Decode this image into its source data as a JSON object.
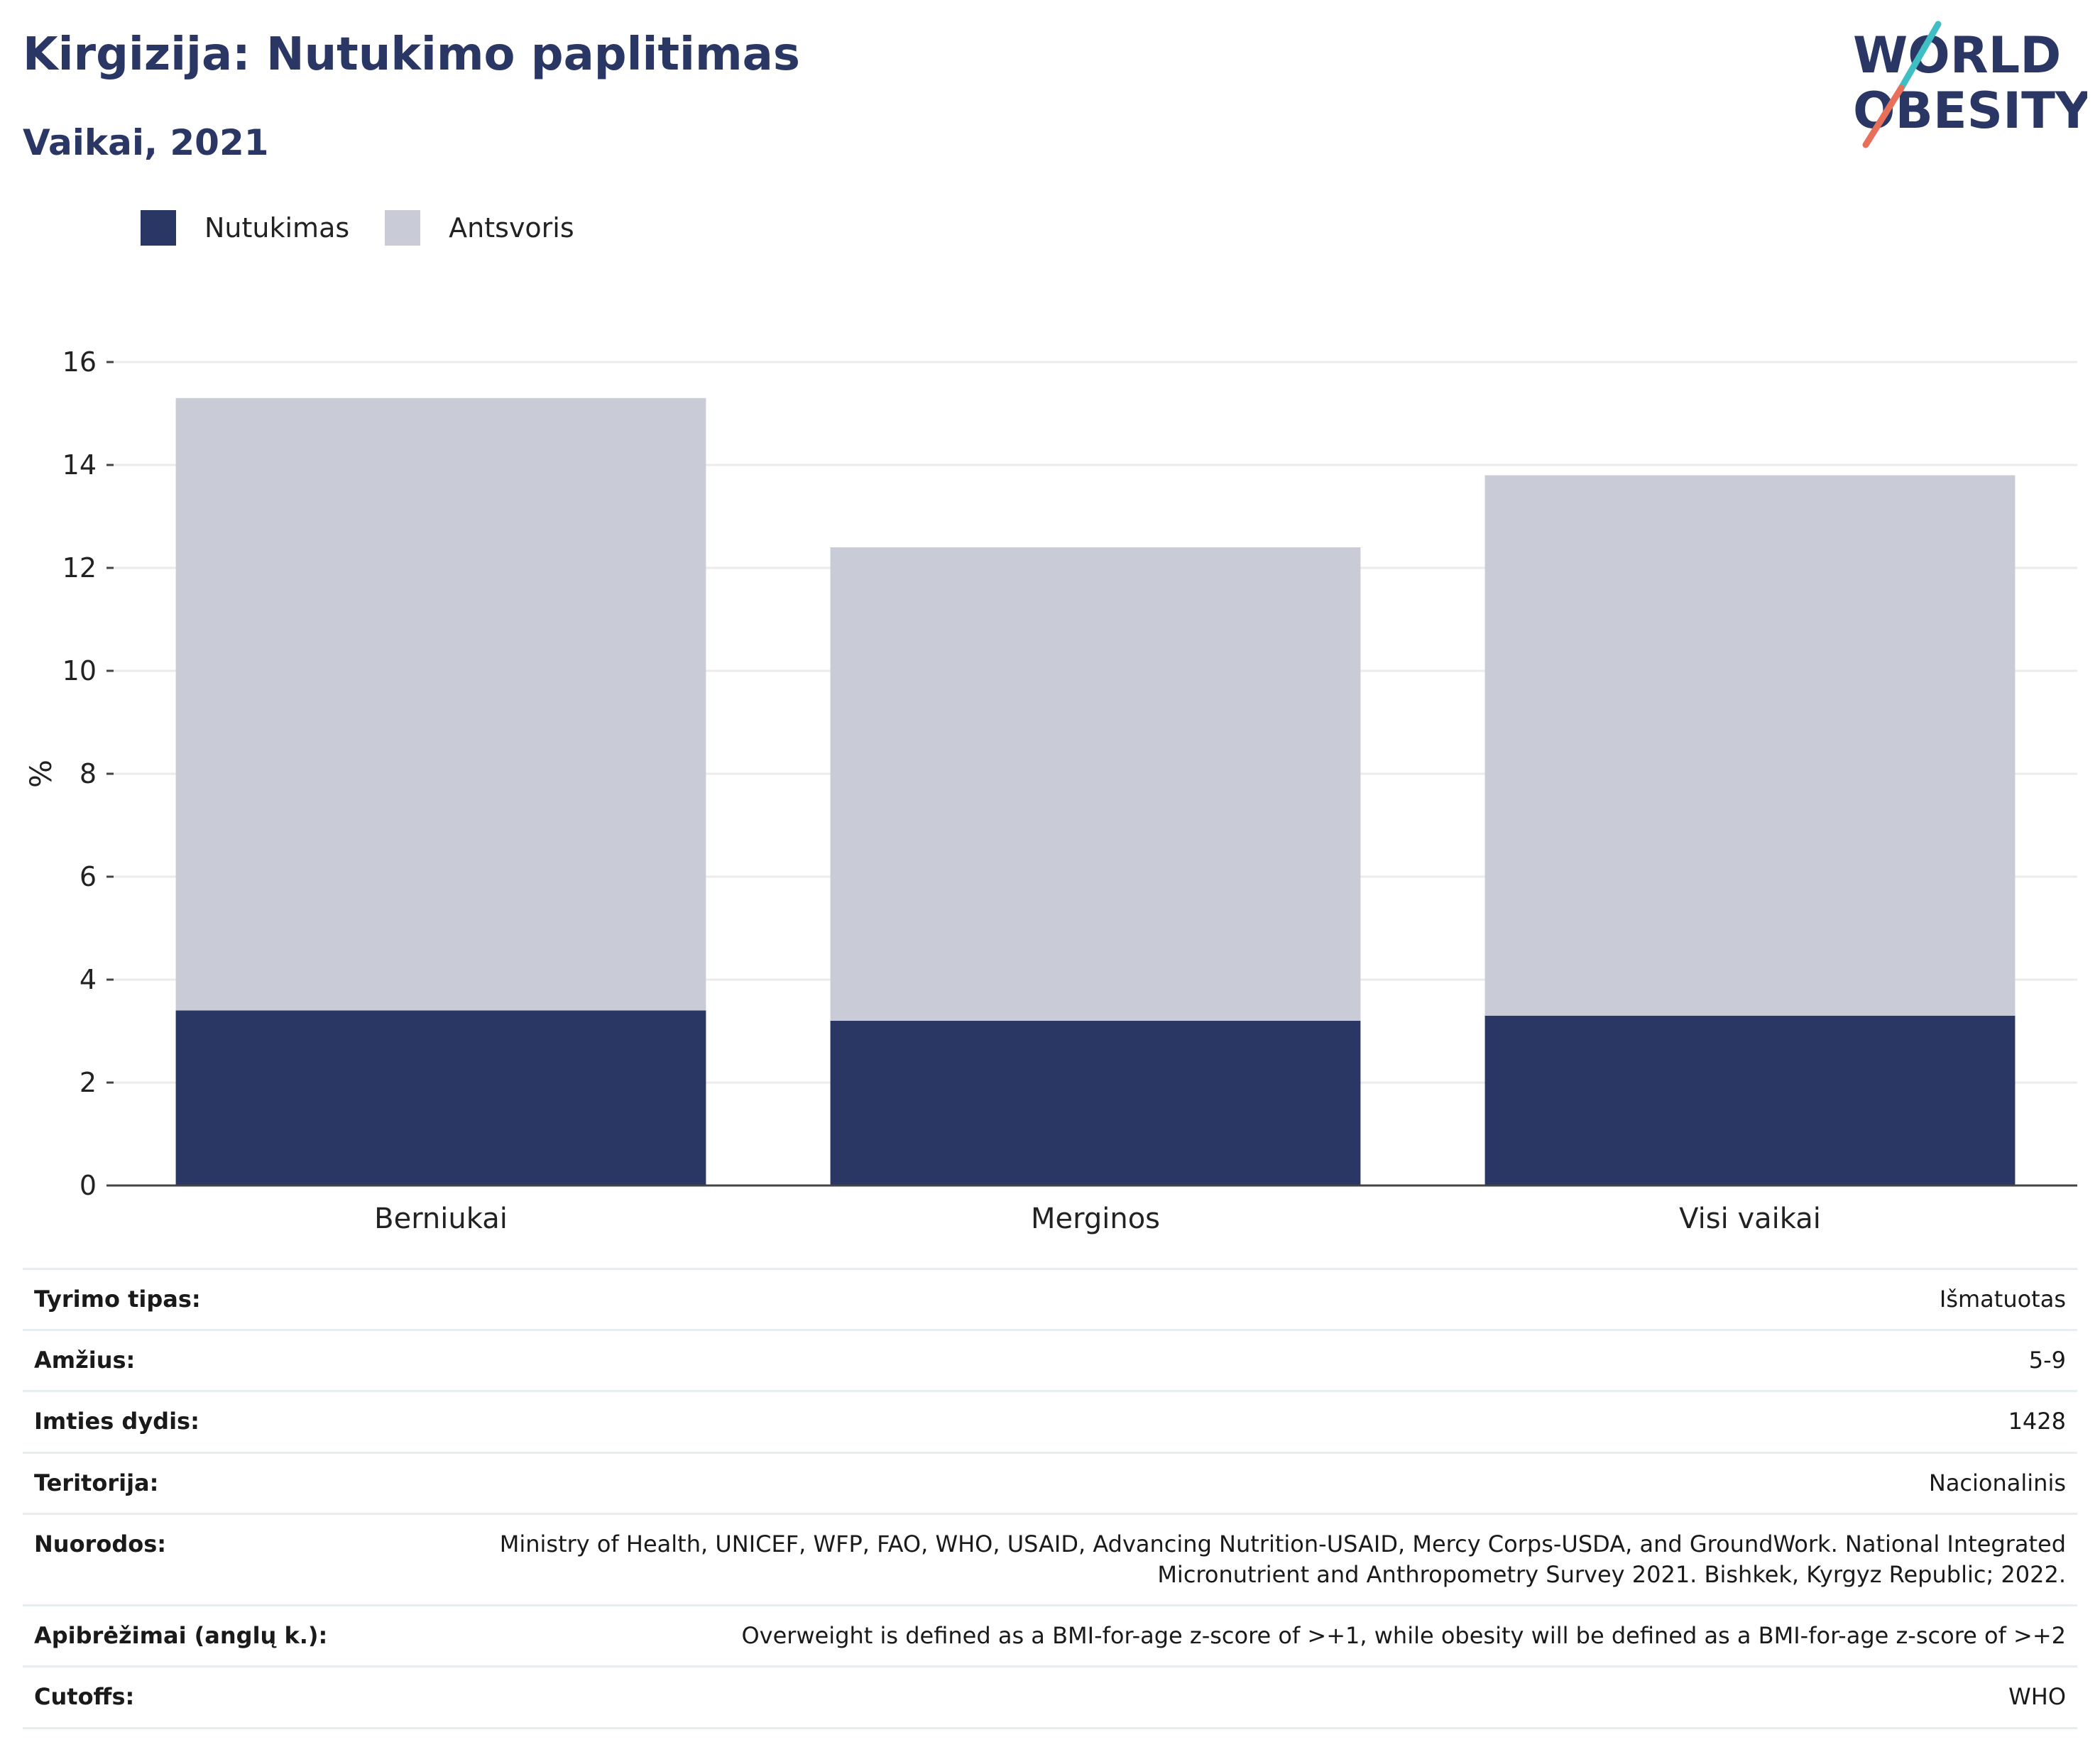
{
  "header": {
    "title": "Kirgizija: Nutukimo paplitimas",
    "subtitle": "Vaikai, 2021"
  },
  "logo": {
    "line1": "WORLD",
    "line2": "OBESITY"
  },
  "legend": [
    {
      "label": "Nutukimas",
      "color": "#2a3664"
    },
    {
      "label": "Antsvoris",
      "color": "#c9ccd7"
    }
  ],
  "chart_data": {
    "type": "bar",
    "stacked": true,
    "categories": [
      "Berniukai",
      "Merginos",
      "Visi vaikai"
    ],
    "series": [
      {
        "name": "Nutukimas",
        "values": [
          3.4,
          3.2,
          3.3
        ],
        "color": "#2a3664"
      },
      {
        "name": "Antsvoris",
        "values": [
          11.9,
          9.2,
          10.5
        ],
        "color": "#c9ccd7"
      }
    ],
    "ylabel": "%",
    "ylim": [
      0,
      16
    ],
    "yticks": [
      0,
      2,
      4,
      6,
      8,
      10,
      12,
      14,
      16
    ],
    "grid": true,
    "legend_position": "top-left"
  },
  "info": [
    {
      "key": "Tyrimo tipas:",
      "value": "Išmatuotas"
    },
    {
      "key": "Amžius:",
      "value": "5-9"
    },
    {
      "key": "Imties dydis:",
      "value": "1428"
    },
    {
      "key": "Teritorija:",
      "value": "Nacionalinis"
    },
    {
      "key": "Nuorodos:",
      "value": "Ministry of Health, UNICEF, WFP, FAO, WHO, USAID, Advancing Nutrition-USAID, Mercy Corps-USDA, and GroundWork. National Integrated Micronutrient and Anthropometry Survey 2021. Bishkek, Kyrgyz Republic; 2022."
    },
    {
      "key": "Apibrėžimai (anglų k.):",
      "value": "Overweight is defined as a BMI-for-age z-score of >+1, while obesity will be defined as a BMI-for-age z-score of >+2"
    },
    {
      "key": "Cutoffs:",
      "value": "WHO"
    }
  ]
}
